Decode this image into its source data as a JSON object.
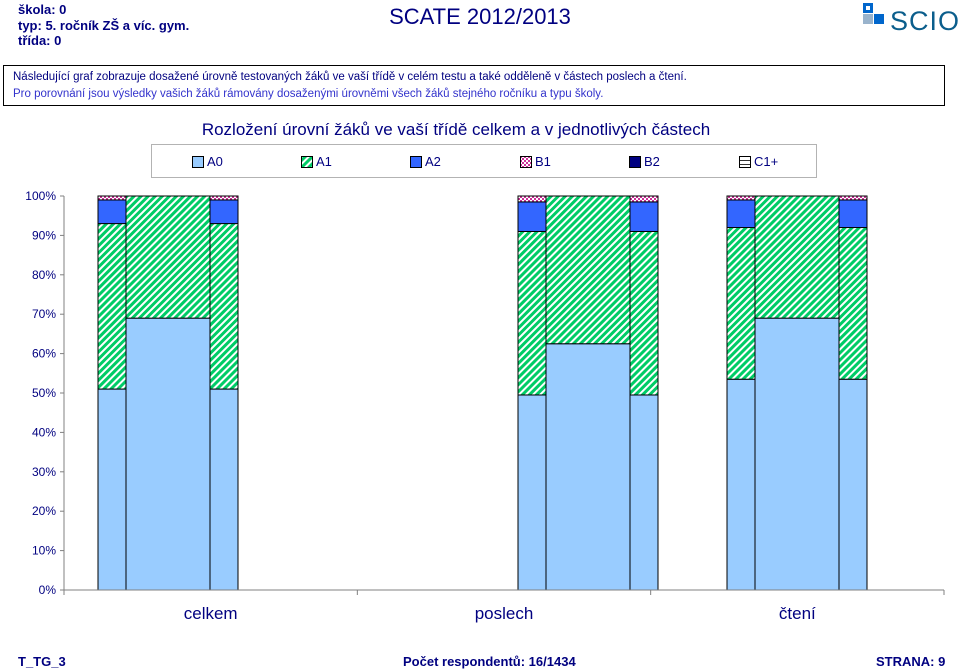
{
  "header": {
    "school": "škola: 0",
    "type": "typ: 5. ročník ZŠ a víc. gym.",
    "class": "třída: 0",
    "title": "SCATE 2012/2013",
    "logo_text": "SCIO"
  },
  "info": {
    "line1": "Následující graf zobrazuje dosažené úrovně testovaných žáků ve vaší třídě v celém testu a také odděleně v částech poslech a čtení.",
    "line2": "Pro porovnání jsou výsledky vašich žáků rámovány dosaženými úrovněmi všech žáků stejného ročníku a typu školy."
  },
  "chart_data": {
    "type": "bar",
    "stacked": true,
    "title": "Rozložení úrovní žáků ve vaší třídě celkem a v jednotlivých částech",
    "categories": [
      "celkem",
      "poslech",
      "čtení"
    ],
    "y_ticks": [
      "0%",
      "10%",
      "20%",
      "30%",
      "40%",
      "50%",
      "60%",
      "70%",
      "80%",
      "90%",
      "100%"
    ],
    "ylim": [
      0,
      100
    ],
    "legend_position": "top",
    "groups": [
      {
        "category": "celkem",
        "bars": [
          {
            "role": "comparison-left",
            "segments": [
              51,
              42,
              6,
              1,
              0,
              0
            ]
          },
          {
            "role": "class",
            "segments": [
              69,
              31,
              0,
              0,
              0,
              0
            ]
          },
          {
            "role": "comparison-right",
            "segments": [
              51,
              42,
              6,
              1,
              0,
              0
            ]
          }
        ]
      },
      {
        "category": "poslech",
        "bars": [
          {
            "role": "comparison-left",
            "segments": [
              49.5,
              41.5,
              7.5,
              1.5,
              0,
              0
            ]
          },
          {
            "role": "class",
            "segments": [
              62.5,
              37.5,
              0,
              0,
              0,
              0
            ]
          },
          {
            "role": "comparison-right",
            "segments": [
              49.5,
              41.5,
              7.5,
              1.5,
              0,
              0
            ]
          }
        ]
      },
      {
        "category": "čtení",
        "bars": [
          {
            "role": "comparison-left",
            "segments": [
              53.5,
              38.5,
              7,
              1,
              0,
              0
            ]
          },
          {
            "role": "class",
            "segments": [
              69,
              31,
              0,
              0,
              0,
              0
            ]
          },
          {
            "role": "comparison-right",
            "segments": [
              53.5,
              38.5,
              7,
              1,
              0,
              0
            ]
          }
        ]
      }
    ],
    "series": [
      {
        "name": "A0",
        "color": "#99ccff",
        "pattern": "solid"
      },
      {
        "name": "A1",
        "color": "#00cc66",
        "pattern": "diagonal-stripes"
      },
      {
        "name": "A2",
        "color": "#3366ff",
        "pattern": "solid"
      },
      {
        "name": "B1",
        "color": "#cc3399",
        "pattern": "checker"
      },
      {
        "name": "B2",
        "color": "#000080",
        "pattern": "solid"
      },
      {
        "name": "C1+",
        "color": "#333333",
        "pattern": "box"
      }
    ]
  },
  "footer": {
    "left": "T_TG_3",
    "center": "Počet respondentů: 16/1434",
    "right": "STRANA: 9"
  }
}
